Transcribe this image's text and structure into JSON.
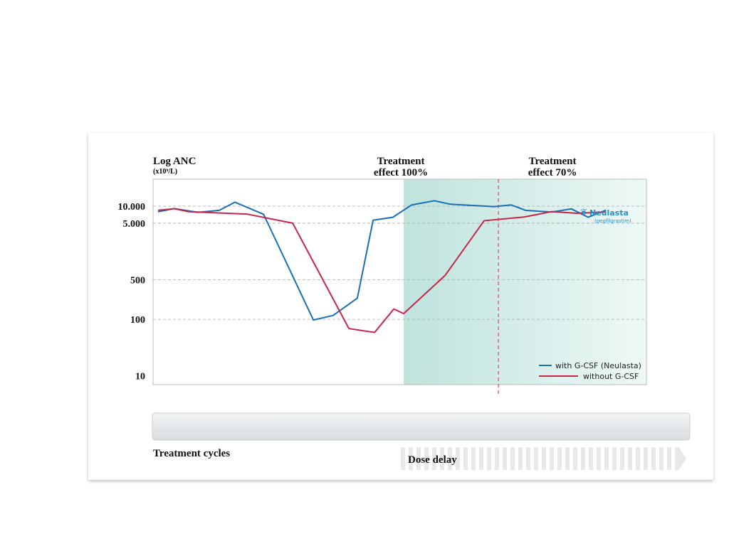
{
  "chart_data": {
    "type": "line",
    "y_label": "Log ANC",
    "y_unit": "(x10⁹/L)",
    "log_y": true,
    "ylim": [
      7,
      30000
    ],
    "yticks": [
      10,
      100,
      500,
      {
        "value": 5000,
        "label": "5.000"
      },
      {
        "value": 10000,
        "label": "10.000"
      }
    ],
    "xlim": [
      0,
      100
    ],
    "grid": true,
    "legend": "lower right",
    "series": [
      {
        "name": "with G-CSF (Neulasta)",
        "color": "#1a6fb5",
        "x": [
          1,
          4.3,
          9.1,
          13.4,
          16.6,
          22.4,
          32.5,
          36.5,
          41.4,
          44.6,
          48.6,
          52.4,
          57,
          60.2,
          69.1,
          72.6,
          75.5,
          80.8,
          84.8,
          88.2,
          91.8
        ],
        "values": [
          7940,
          9050,
          7780,
          8430,
          11740,
          7180,
          97,
          117,
          236,
          5640,
          6360,
          10500,
          12470,
          10840,
          9800,
          10500,
          8430,
          7860,
          8950,
          6360,
          8520
        ]
      },
      {
        "name": "without G-CSF",
        "color": "#c8244a",
        "x": [
          1,
          4.3,
          7.2,
          19,
          28.3,
          39.7,
          44.9,
          48.8,
          50.8,
          59.2,
          67.1,
          75.2,
          80.8,
          85.9,
          91.6
        ],
        "values": [
          8430,
          9010,
          7990,
          7250,
          5000,
          68.5,
          58.6,
          152,
          126,
          597,
          5530,
          6430,
          8010,
          7470,
          7860
        ]
      }
    ],
    "region": {
      "x": 50.8,
      "label": [
        "Treatment",
        "effect 100%"
      ]
    },
    "vline": {
      "x": 70,
      "label": [
        "Treatment",
        "effect 70%"
      ]
    },
    "logo": {
      "name": "Neulasta",
      "sub": "(pegfilgrastim)"
    },
    "cycles_label": "Treatment cycles",
    "delay_label": "Dose delay"
  }
}
